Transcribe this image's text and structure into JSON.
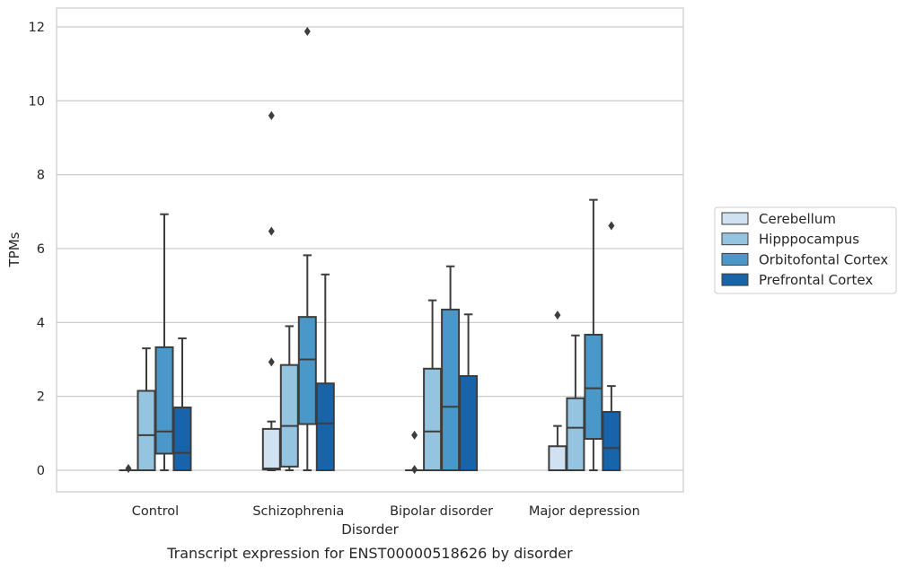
{
  "chart_data": {
    "type": "box",
    "title": "",
    "caption": "Transcript expression for ENST00000518626 by disorder",
    "xlabel": "Disorder",
    "ylabel": "TPMs",
    "ylim": [
      -0.6,
      12.5
    ],
    "yticks": [
      0,
      2,
      4,
      6,
      8,
      10,
      12
    ],
    "grid": "horizontal",
    "legend_position": "right",
    "categories": [
      "Control",
      "Schizophrenia",
      "Bipolar disorder",
      "Major depression"
    ],
    "series": [
      {
        "name": "Cerebellum",
        "color": "#d0e1f2",
        "boxes": [
          {
            "q1": 0,
            "median": 0,
            "q3": 0,
            "whislo": 0,
            "whishi": 0,
            "fliers": [
              0.05
            ]
          },
          {
            "q1": 0.02,
            "median": 0.05,
            "q3": 1.12,
            "whislo": 0,
            "whishi": 1.32,
            "fliers": [
              2.93,
              6.47,
              9.6
            ]
          },
          {
            "q1": 0,
            "median": 0,
            "q3": 0,
            "whislo": 0,
            "whishi": 0,
            "fliers": [
              0.02,
              0.95
            ]
          },
          {
            "q1": 0,
            "median": 0,
            "q3": 0.65,
            "whislo": 0,
            "whishi": 1.2,
            "fliers": [
              4.2
            ]
          }
        ]
      },
      {
        "name": "Hipppocampus",
        "color": "#94c4df",
        "boxes": [
          {
            "q1": 0,
            "median": 0.95,
            "q3": 2.15,
            "whislo": 0,
            "whishi": 3.3,
            "fliers": []
          },
          {
            "q1": 0.1,
            "median": 1.2,
            "q3": 2.85,
            "whislo": 0,
            "whishi": 3.9,
            "fliers": []
          },
          {
            "q1": 0,
            "median": 1.05,
            "q3": 2.75,
            "whislo": 0,
            "whishi": 4.6,
            "fliers": []
          },
          {
            "q1": 0,
            "median": 1.15,
            "q3": 1.95,
            "whislo": 0,
            "whishi": 3.65,
            "fliers": []
          }
        ]
      },
      {
        "name": "Orbitofontal Cortex",
        "color": "#4a98c9",
        "boxes": [
          {
            "q1": 0.45,
            "median": 1.05,
            "q3": 3.33,
            "whislo": 0,
            "whishi": 6.93,
            "fliers": []
          },
          {
            "q1": 1.25,
            "median": 3.0,
            "q3": 4.15,
            "whislo": 0,
            "whishi": 5.82,
            "fliers": [
              11.88
            ]
          },
          {
            "q1": 0,
            "median": 1.72,
            "q3": 4.35,
            "whislo": 0,
            "whishi": 5.52,
            "fliers": []
          },
          {
            "q1": 0.85,
            "median": 2.22,
            "q3": 3.67,
            "whislo": 0,
            "whishi": 7.32,
            "fliers": []
          }
        ]
      },
      {
        "name": "Prefrontal Cortex",
        "color": "#1764ab",
        "boxes": [
          {
            "q1": 0,
            "median": 0.47,
            "q3": 1.7,
            "whislo": 0,
            "whishi": 3.57,
            "fliers": []
          },
          {
            "q1": 0,
            "median": 1.27,
            "q3": 2.35,
            "whislo": 0,
            "whishi": 5.3,
            "fliers": []
          },
          {
            "q1": 0,
            "median": 0,
            "q3": 2.55,
            "whislo": 0,
            "whishi": 4.22,
            "fliers": []
          },
          {
            "q1": 0,
            "median": 0.6,
            "q3": 1.58,
            "whislo": 0,
            "whishi": 2.28,
            "fliers": [
              6.62
            ]
          }
        ]
      }
    ]
  }
}
